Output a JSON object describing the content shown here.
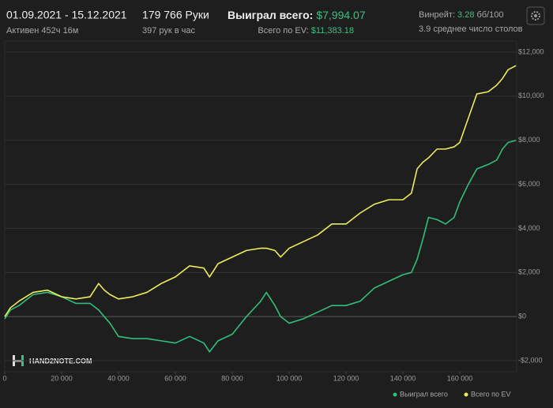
{
  "header": {
    "date_range": "01.09.2021 - 15.12.2021",
    "active": "Активен 452ч 16м",
    "hands": "179 766 Руки",
    "hands_per_hour": "397 рук в час",
    "won_label": "Выиграл всего:",
    "won_value": "$7,994.07",
    "ev_label": "Всего по EV:",
    "ev_value": "$11,383.18",
    "winrate_label": "Винрейт:",
    "winrate_value": "3.28",
    "winrate_unit": "бб/100",
    "tables": "3.9 среднее число столов"
  },
  "logo": "HAND2NOTE.COM",
  "chart_data": {
    "type": "line",
    "x": [
      0,
      2000,
      5000,
      10000,
      15000,
      20000,
      25000,
      30000,
      33000,
      35000,
      37000,
      40000,
      45000,
      50000,
      55000,
      60000,
      65000,
      70000,
      72000,
      75000,
      80000,
      85000,
      90000,
      92000,
      95000,
      97000,
      100000,
      105000,
      110000,
      115000,
      120000,
      125000,
      130000,
      135000,
      140000,
      143000,
      145000,
      147000,
      149000,
      152000,
      155000,
      158000,
      160000,
      163000,
      166000,
      170000,
      173000,
      175000,
      177000,
      179766
    ],
    "series": [
      {
        "name": "Выиграл всего",
        "color": "#2fbf7c",
        "values": [
          -100,
          300,
          500,
          1000,
          1100,
          900,
          600,
          600,
          300,
          0,
          -300,
          -900,
          -1000,
          -1000,
          -1100,
          -1200,
          -900,
          -1200,
          -1600,
          -1100,
          -800,
          0,
          700,
          1100,
          500,
          0,
          -300,
          -100,
          200,
          500,
          500,
          700,
          1300,
          1600,
          1900,
          2000,
          2600,
          3500,
          4500,
          4400,
          4200,
          4500,
          5200,
          6000,
          6700,
          6900,
          7100,
          7600,
          7900,
          7994
        ]
      },
      {
        "name": "Всего по EV",
        "color": "#ecec5c",
        "values": [
          0,
          400,
          700,
          1100,
          1200,
          900,
          800,
          900,
          1500,
          1200,
          1000,
          800,
          900,
          1100,
          1500,
          1800,
          2300,
          2200,
          1800,
          2400,
          2700,
          3000,
          3100,
          3100,
          3000,
          2700,
          3100,
          3400,
          3700,
          4200,
          4200,
          4700,
          5100,
          5300,
          5300,
          5600,
          6700,
          7000,
          7200,
          7600,
          7600,
          7700,
          7900,
          9000,
          10100,
          10200,
          10500,
          10800,
          11200,
          11383
        ]
      }
    ],
    "xlim": [
      0,
      180000
    ],
    "xticks": [
      0,
      {
        "value": 20000,
        "label": "20 000"
      },
      {
        "value": 40000,
        "label": "40 000"
      },
      {
        "value": 60000,
        "label": "60 000"
      },
      {
        "value": 80000,
        "label": "80 000"
      },
      {
        "value": 100000,
        "label": "100 000"
      },
      {
        "value": 120000,
        "label": "120 000"
      },
      {
        "value": 140000,
        "label": "140 000"
      },
      {
        "value": 160000,
        "label": "160 000"
      }
    ],
    "ylim": [
      -2500,
      12500
    ],
    "yticks": [
      {
        "value": -2000,
        "label": "-$2,000"
      },
      {
        "value": 0,
        "label": "$0"
      },
      {
        "value": 2000,
        "label": "$2,000"
      },
      {
        "value": 4000,
        "label": "$4,000"
      },
      {
        "value": 6000,
        "label": "$6,000"
      },
      {
        "value": 8000,
        "label": "$8,000"
      },
      {
        "value": 10000,
        "label": "$10,000"
      },
      {
        "value": 12000,
        "label": "$12,000"
      }
    ],
    "grid": true,
    "legend": "bottom-right"
  }
}
